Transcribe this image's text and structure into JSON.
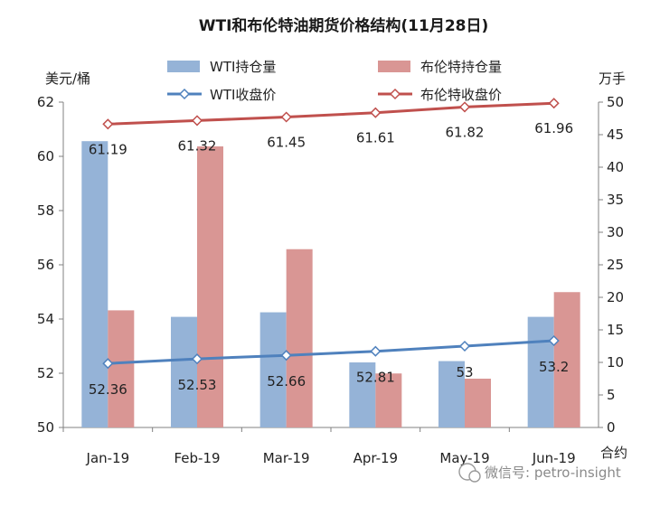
{
  "chart_data": {
    "type": "bar",
    "title": "WTI和布伦特油期货价格结构(11月28日)",
    "left_axis_unit": "美元/桶",
    "right_axis_unit": "万手",
    "right_axis_footer": "合约",
    "categories": [
      "Jan-19",
      "Feb-19",
      "Mar-19",
      "Apr-19",
      "May-19",
      "Jun-19"
    ],
    "left_axis": {
      "min": 50,
      "max": 62,
      "ticks": [
        "50",
        "52",
        "54",
        "56",
        "58",
        "60",
        "62"
      ]
    },
    "right_axis": {
      "min": 0,
      "max": 50,
      "ticks": [
        "0",
        "5",
        "10",
        "15",
        "20",
        "25",
        "30",
        "35",
        "40",
        "45",
        "50"
      ]
    },
    "bar_series": [
      {
        "name": "WTI持仓量",
        "color": "#95b3d7",
        "axis": "right",
        "values": [
          44,
          17,
          17.7,
          10,
          10.2,
          17
        ]
      },
      {
        "name": "布伦特持仓量",
        "color": "#d99694",
        "axis": "right",
        "values": [
          18,
          43.2,
          27.4,
          8.3,
          7.5,
          20.8
        ]
      }
    ],
    "line_series": [
      {
        "name": "WTI收盘价",
        "color": "#4f81bd",
        "axis": "left",
        "values": [
          52.36,
          52.53,
          52.66,
          52.81,
          53,
          53.2
        ],
        "labels": [
          "52.36",
          "52.53",
          "52.66",
          "52.81",
          "53",
          "53.2"
        ]
      },
      {
        "name": "布伦特收盘价",
        "color": "#c0504d",
        "axis": "left",
        "values": [
          61.19,
          61.32,
          61.45,
          61.61,
          61.82,
          61.96
        ],
        "labels": [
          "61.19",
          "61.32",
          "61.45",
          "61.61",
          "61.82",
          "61.96"
        ]
      }
    ],
    "grid": false,
    "legend_position": "top"
  },
  "watermark": "微信号: petro-insight"
}
